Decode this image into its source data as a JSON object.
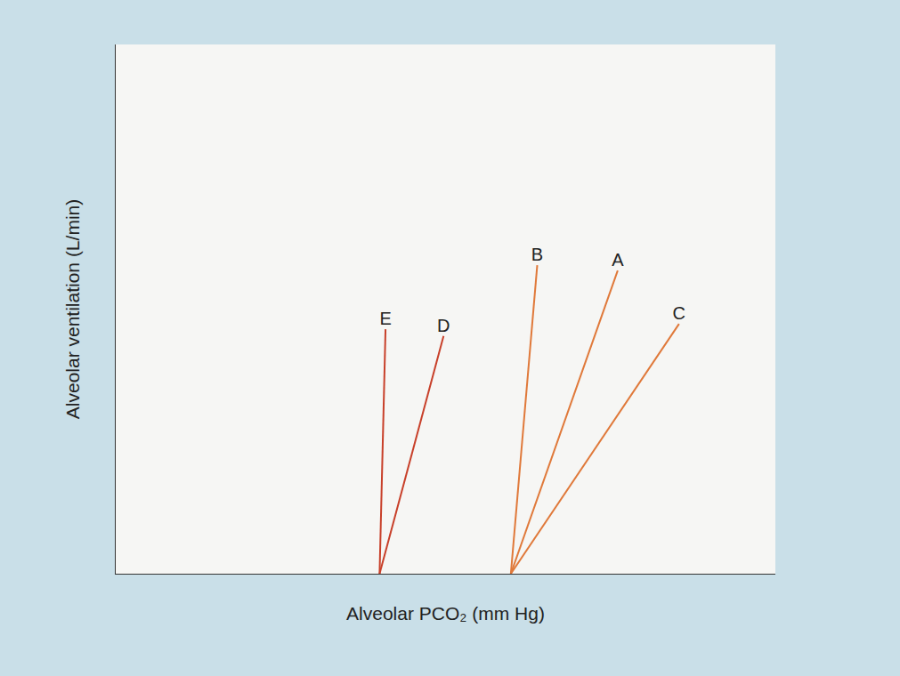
{
  "chart_data": {
    "type": "line",
    "x_label": "Alveolar PCO₂ (mm Hg)",
    "y_label": "Alveolar ventilation (L/min)",
    "xlim": [
      0,
      100
    ],
    "ylim": [
      0,
      100
    ],
    "tick_labels": false,
    "grid": false,
    "series": [
      {
        "name": "E",
        "color": "#c8402a",
        "x": [
          40.0,
          40.9
        ],
        "values": [
          0,
          46.2
        ]
      },
      {
        "name": "D",
        "color": "#c8402a",
        "x": [
          40.0,
          49.7
        ],
        "values": [
          0,
          44.9
        ]
      },
      {
        "name": "B",
        "color": "#e0793a",
        "x": [
          59.9,
          63.9
        ],
        "values": [
          0,
          58.3
        ]
      },
      {
        "name": "A",
        "color": "#e0793a",
        "x": [
          59.9,
          76.1
        ],
        "values": [
          0,
          57.3
        ]
      },
      {
        "name": "C",
        "color": "#e0793a",
        "x": [
          59.9,
          85.4
        ],
        "values": [
          0,
          47.2
        ]
      }
    ]
  }
}
